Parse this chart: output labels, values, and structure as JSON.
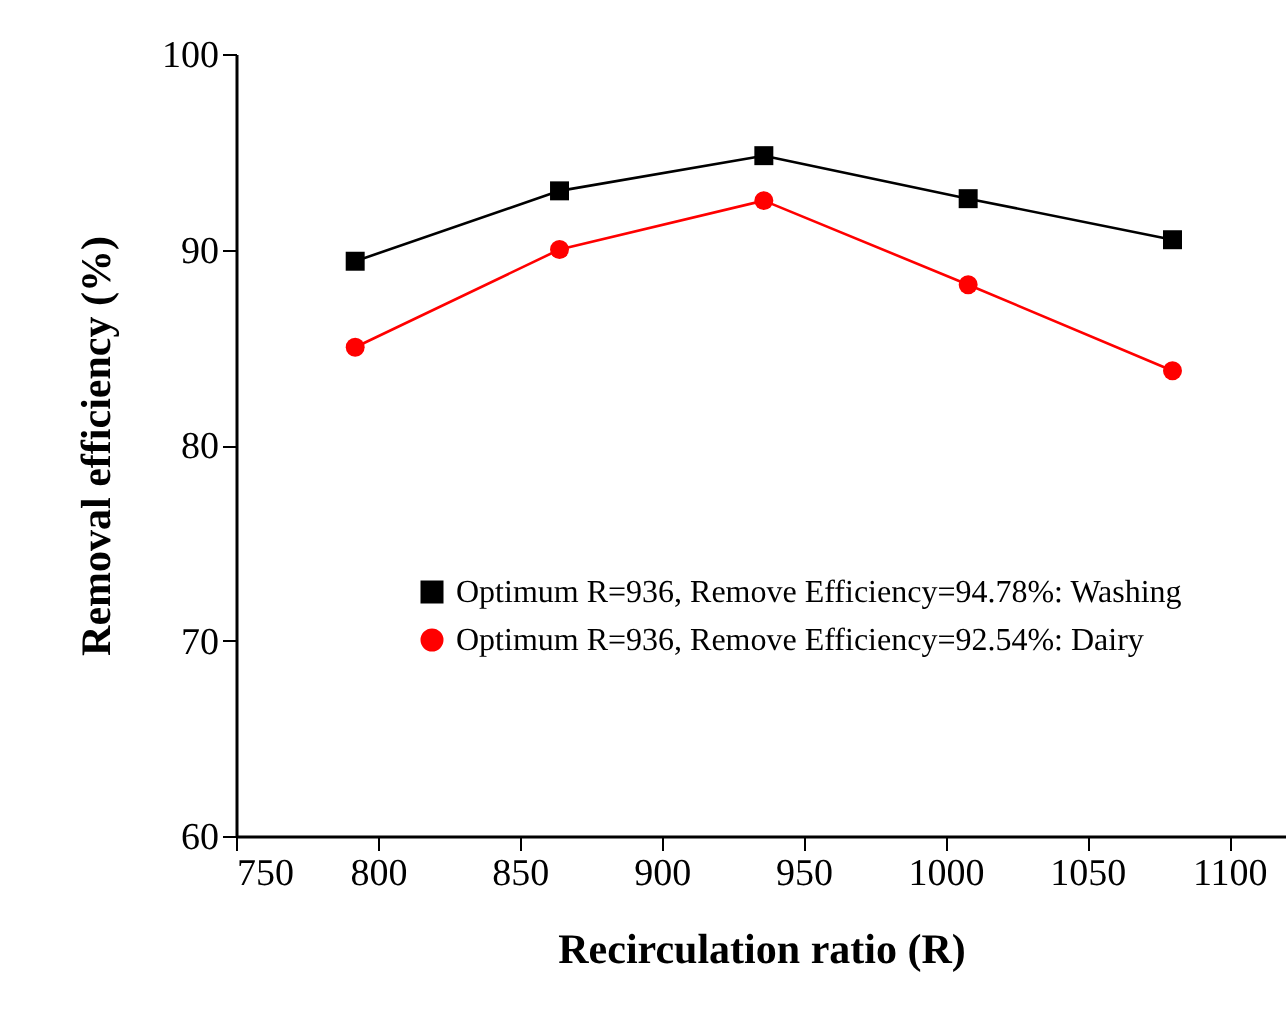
{
  "chart_data": {
    "type": "line",
    "xlabel": "Recirculation ratio (R)",
    "ylabel": "Removal efficiency (%)",
    "x": [
      792,
      864,
      936,
      1008,
      1080
    ],
    "series": [
      {
        "name": "Optimum R=936, Remove Efficiency=94.78%: Washing",
        "color": "#000000",
        "marker": "square",
        "values": [
          89.4,
          93.0,
          94.8,
          92.6,
          90.5
        ]
      },
      {
        "name": "Optimum R=936, Remove Efficiency=92.54%: Dairy",
        "color": "#ff0000",
        "marker": "circle",
        "values": [
          85.0,
          90.0,
          92.5,
          88.2,
          83.8
        ]
      }
    ],
    "xlim": [
      750,
      1120
    ],
    "xticks": [
      750,
      800,
      850,
      900,
      950,
      1000,
      1050,
      1100
    ],
    "ylim": [
      60,
      100
    ],
    "yticks": [
      60,
      70,
      80,
      90,
      100
    ],
    "grid": false,
    "legend": "bottom left",
    "line_style": "solid"
  }
}
